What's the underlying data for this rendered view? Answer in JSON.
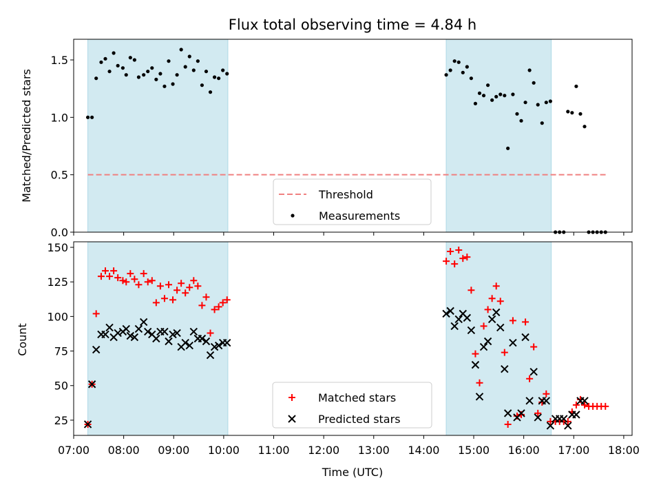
{
  "colors": {
    "band": "#add8e6",
    "threshold": "#f08080",
    "matched": "#ff0000",
    "predicted": "#000000",
    "measurements": "#000000"
  },
  "chart_data": [
    {
      "type": "scatter",
      "title": "Flux total observing time = 4.84 h",
      "xlabel": "",
      "ylabel": "Matched/Predicted stars",
      "xlim": [
        "07:00",
        "18:10"
      ],
      "ylim": [
        0,
        1.68
      ],
      "y_ticks": [
        0.0,
        0.5,
        1.0,
        1.5
      ],
      "y_tick_labels": [
        "0.0",
        "0.5",
        "1.0",
        "1.5"
      ],
      "grid": false,
      "legend_position": "lower center",
      "observing_windows": [
        [
          "07:17",
          "10:05"
        ],
        [
          "14:27",
          "16:33"
        ]
      ],
      "threshold": {
        "name": "Threshold",
        "value": 0.5,
        "x_range": [
          "07:17",
          "17:41"
        ],
        "style": "dashed"
      },
      "series": [
        {
          "name": "Measurements",
          "marker": "dot",
          "points": [
            [
              "07:17",
              1.0
            ],
            [
              "07:22",
              1.0
            ],
            [
              "07:27",
              1.34
            ],
            [
              "07:33",
              1.48
            ],
            [
              "07:38",
              1.51
            ],
            [
              "07:43",
              1.4
            ],
            [
              "07:48",
              1.56
            ],
            [
              "07:53",
              1.45
            ],
            [
              "07:59",
              1.43
            ],
            [
              "08:03",
              1.37
            ],
            [
              "08:08",
              1.52
            ],
            [
              "08:13",
              1.5
            ],
            [
              "08:18",
              1.35
            ],
            [
              "08:24",
              1.37
            ],
            [
              "08:29",
              1.4
            ],
            [
              "08:34",
              1.43
            ],
            [
              "08:39",
              1.33
            ],
            [
              "08:44",
              1.38
            ],
            [
              "08:49",
              1.27
            ],
            [
              "08:54",
              1.49
            ],
            [
              "08:59",
              1.29
            ],
            [
              "09:04",
              1.37
            ],
            [
              "09:09",
              1.59
            ],
            [
              "09:14",
              1.44
            ],
            [
              "09:19",
              1.53
            ],
            [
              "09:24",
              1.41
            ],
            [
              "09:29",
              1.49
            ],
            [
              "09:34",
              1.28
            ],
            [
              "09:39",
              1.4
            ],
            [
              "09:44",
              1.22
            ],
            [
              "09:49",
              1.35
            ],
            [
              "09:54",
              1.34
            ],
            [
              "09:59",
              1.41
            ],
            [
              "10:04",
              1.38
            ],
            [
              "14:27",
              1.37
            ],
            [
              "14:32",
              1.41
            ],
            [
              "14:37",
              1.49
            ],
            [
              "14:42",
              1.48
            ],
            [
              "14:47",
              1.39
            ],
            [
              "14:52",
              1.44
            ],
            [
              "14:57",
              1.34
            ],
            [
              "15:02",
              1.12
            ],
            [
              "15:07",
              1.21
            ],
            [
              "15:12",
              1.19
            ],
            [
              "15:17",
              1.28
            ],
            [
              "15:22",
              1.15
            ],
            [
              "15:27",
              1.18
            ],
            [
              "15:32",
              1.2
            ],
            [
              "15:37",
              1.19
            ],
            [
              "15:41",
              0.73
            ],
            [
              "15:47",
              1.2
            ],
            [
              "15:52",
              1.03
            ],
            [
              "15:57",
              0.97
            ],
            [
              "16:02",
              1.13
            ],
            [
              "16:07",
              1.41
            ],
            [
              "16:12",
              1.3
            ],
            [
              "16:17",
              1.11
            ],
            [
              "16:22",
              0.95
            ],
            [
              "16:27",
              1.13
            ],
            [
              "16:32",
              1.14
            ],
            [
              "16:38",
              0.0
            ],
            [
              "16:43",
              0.0
            ],
            [
              "16:48",
              0.0
            ],
            [
              "16:53",
              1.05
            ],
            [
              "16:58",
              1.04
            ],
            [
              "17:03",
              1.27
            ],
            [
              "17:08",
              1.03
            ],
            [
              "17:13",
              0.92
            ],
            [
              "17:18",
              0.0
            ],
            [
              "17:23",
              0.0
            ],
            [
              "17:28",
              0.0
            ],
            [
              "17:33",
              0.0
            ],
            [
              "17:38",
              0.0
            ]
          ]
        }
      ]
    },
    {
      "type": "scatter",
      "title": "",
      "xlabel": "Time (UTC)",
      "ylabel": "Count",
      "xlim": [
        "07:00",
        "18:10"
      ],
      "ylim": [
        14,
        154
      ],
      "x_ticks": [
        "07:00",
        "08:00",
        "09:00",
        "10:00",
        "11:00",
        "12:00",
        "13:00",
        "14:00",
        "15:00",
        "16:00",
        "17:00",
        "18:00"
      ],
      "y_ticks": [
        25,
        50,
        75,
        100,
        125,
        150
      ],
      "grid": false,
      "legend_position": "lower center",
      "observing_windows": [
        [
          "07:17",
          "10:05"
        ],
        [
          "14:27",
          "16:33"
        ]
      ],
      "series": [
        {
          "name": "Matched stars",
          "marker": "plus",
          "points": [
            [
              "07:17",
              22
            ],
            [
              "07:22",
              51
            ],
            [
              "07:27",
              102
            ],
            [
              "07:33",
              129
            ],
            [
              "07:38",
              133
            ],
            [
              "07:43",
              129
            ],
            [
              "07:48",
              133
            ],
            [
              "07:53",
              128
            ],
            [
              "07:59",
              126
            ],
            [
              "08:03",
              125
            ],
            [
              "08:08",
              131
            ],
            [
              "08:13",
              127
            ],
            [
              "08:18",
              123
            ],
            [
              "08:24",
              131
            ],
            [
              "08:29",
              125
            ],
            [
              "08:34",
              126
            ],
            [
              "08:39",
              110
            ],
            [
              "08:44",
              122
            ],
            [
              "08:49",
              113
            ],
            [
              "08:54",
              123
            ],
            [
              "08:59",
              112
            ],
            [
              "09:04",
              119
            ],
            [
              "09:09",
              124
            ],
            [
              "09:14",
              117
            ],
            [
              "09:19",
              121
            ],
            [
              "09:24",
              126
            ],
            [
              "09:29",
              122
            ],
            [
              "09:34",
              108
            ],
            [
              "09:39",
              114
            ],
            [
              "09:44",
              88
            ],
            [
              "09:49",
              105
            ],
            [
              "09:54",
              107
            ],
            [
              "09:59",
              110
            ],
            [
              "10:04",
              112
            ],
            [
              "14:27",
              140
            ],
            [
              "14:32",
              147
            ],
            [
              "14:37",
              138
            ],
            [
              "14:42",
              148
            ],
            [
              "14:47",
              142
            ],
            [
              "14:52",
              143
            ],
            [
              "14:57",
              119
            ],
            [
              "15:02",
              73
            ],
            [
              "15:07",
              52
            ],
            [
              "15:12",
              93
            ],
            [
              "15:17",
              105
            ],
            [
              "15:22",
              113
            ],
            [
              "15:27",
              122
            ],
            [
              "15:32",
              111
            ],
            [
              "15:37",
              74
            ],
            [
              "15:41",
              22
            ],
            [
              "15:47",
              97
            ],
            [
              "15:52",
              28
            ],
            [
              "15:57",
              29
            ],
            [
              "16:02",
              96
            ],
            [
              "16:07",
              55
            ],
            [
              "16:12",
              78
            ],
            [
              "16:17",
              30
            ],
            [
              "16:22",
              38
            ],
            [
              "16:27",
              44
            ],
            [
              "16:32",
              24
            ],
            [
              "16:38",
              24
            ],
            [
              "16:43",
              24
            ],
            [
              "16:48",
              24
            ],
            [
              "16:53",
              24
            ],
            [
              "16:58",
              31
            ],
            [
              "17:03",
              36
            ],
            [
              "17:08",
              40
            ],
            [
              "17:13",
              36
            ],
            [
              "17:18",
              35
            ],
            [
              "17:23",
              35
            ],
            [
              "17:28",
              35
            ],
            [
              "17:33",
              35
            ],
            [
              "17:38",
              35
            ]
          ]
        },
        {
          "name": "Predicted stars",
          "marker": "x",
          "points": [
            [
              "07:17",
              22
            ],
            [
              "07:22",
              51
            ],
            [
              "07:27",
              76
            ],
            [
              "07:33",
              87
            ],
            [
              "07:38",
              87
            ],
            [
              "07:43",
              92
            ],
            [
              "07:48",
              85
            ],
            [
              "07:53",
              88
            ],
            [
              "07:59",
              89
            ],
            [
              "08:03",
              91
            ],
            [
              "08:08",
              86
            ],
            [
              "08:13",
              85
            ],
            [
              "08:18",
              91
            ],
            [
              "08:24",
              96
            ],
            [
              "08:29",
              89
            ],
            [
              "08:34",
              87
            ],
            [
              "08:39",
              84
            ],
            [
              "08:44",
              89
            ],
            [
              "08:49",
              89
            ],
            [
              "08:54",
              82
            ],
            [
              "08:59",
              87
            ],
            [
              "09:04",
              88
            ],
            [
              "09:09",
              78
            ],
            [
              "09:14",
              81
            ],
            [
              "09:19",
              79
            ],
            [
              "09:24",
              89
            ],
            [
              "09:29",
              84
            ],
            [
              "09:34",
              84
            ],
            [
              "09:39",
              82
            ],
            [
              "09:44",
              72
            ],
            [
              "09:49",
              78
            ],
            [
              "09:54",
              79
            ],
            [
              "09:59",
              81
            ],
            [
              "10:04",
              81
            ],
            [
              "14:27",
              102
            ],
            [
              "14:32",
              104
            ],
            [
              "14:37",
              93
            ],
            [
              "14:42",
              98
            ],
            [
              "14:47",
              102
            ],
            [
              "14:52",
              99
            ],
            [
              "14:57",
              90
            ],
            [
              "15:02",
              65
            ],
            [
              "15:07",
              42
            ],
            [
              "15:12",
              78
            ],
            [
              "15:17",
              82
            ],
            [
              "15:22",
              98
            ],
            [
              "15:27",
              103
            ],
            [
              "15:32",
              92
            ],
            [
              "15:37",
              62
            ],
            [
              "15:41",
              30
            ],
            [
              "15:47",
              81
            ],
            [
              "15:52",
              27
            ],
            [
              "15:57",
              30
            ],
            [
              "16:02",
              85
            ],
            [
              "16:07",
              39
            ],
            [
              "16:12",
              60
            ],
            [
              "16:17",
              27
            ],
            [
              "16:22",
              39
            ],
            [
              "16:27",
              39
            ],
            [
              "16:32",
              21
            ],
            [
              "16:38",
              26
            ],
            [
              "16:43",
              26
            ],
            [
              "16:48",
              26
            ],
            [
              "16:53",
              21
            ],
            [
              "16:58",
              29
            ],
            [
              "17:03",
              29
            ],
            [
              "17:08",
              39
            ],
            [
              "17:13",
              39
            ],
            [
              "17:18",
              null
            ],
            [
              "17:23",
              null
            ],
            [
              "17:28",
              null
            ],
            [
              "17:33",
              null
            ],
            [
              "17:38",
              null
            ]
          ]
        }
      ]
    }
  ]
}
